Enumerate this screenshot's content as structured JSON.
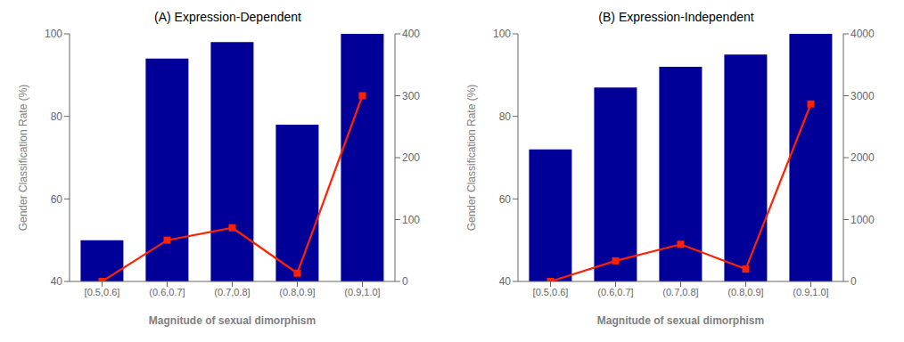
{
  "chart_data": [
    {
      "type": "bar",
      "title": "(A) Expression-Dependent",
      "xlabel": "Magnitude of sexual dimorphism",
      "ylabel": "Gender Classification Rate (%)",
      "categories": [
        "[0.5,0.6]",
        "(0.6,0.7]",
        "(0.7,0.8]",
        "(0.8,0.9]",
        "(0.9,1.0]"
      ],
      "series": [
        {
          "type": "bar",
          "color": "#000099",
          "values": [
            50,
            94,
            98,
            78,
            100
          ]
        },
        {
          "type": "line",
          "color": "#ff2200",
          "marker": "square",
          "values": [
            40,
            50,
            53,
            42,
            85
          ]
        }
      ],
      "ylim": [
        40,
        100
      ],
      "yticks": [
        40,
        60,
        80,
        100
      ],
      "y2lim": [
        0,
        400
      ],
      "y2ticks": [
        0,
        100,
        200,
        300,
        400
      ],
      "grid": false
    },
    {
      "type": "bar",
      "title": "(B) Expression-Independent",
      "xlabel": "Magnitude of sexual dimorphism",
      "ylabel": "Gender Classification Rate (%)",
      "categories": [
        "[0.5,0.6]",
        "(0.6,0.7]",
        "(0.7,0.8]",
        "(0.8,0.9]",
        "(0.9,1.0]"
      ],
      "series": [
        {
          "type": "bar",
          "color": "#000099",
          "values": [
            72,
            87,
            92,
            95,
            100
          ]
        },
        {
          "type": "line",
          "color": "#ff2200",
          "marker": "square",
          "values": [
            40,
            45,
            49,
            43,
            83
          ]
        }
      ],
      "ylim": [
        40,
        100
      ],
      "yticks": [
        40,
        60,
        80,
        100
      ],
      "y2lim": [
        0,
        4000
      ],
      "y2ticks": [
        0,
        1000,
        2000,
        3000,
        4000
      ],
      "grid": false
    }
  ]
}
